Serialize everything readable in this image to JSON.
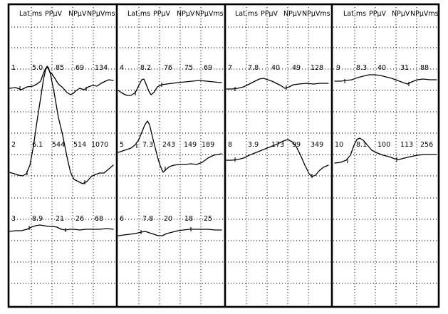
{
  "header_labels": [
    "Lat.ms",
    "PPµV",
    "NPµV",
    "NPµVms"
  ],
  "traces": [
    {
      "num": "1",
      "lat": "5.0",
      "pp": "85",
      "np": "69",
      "npms": "134"
    },
    {
      "num": "2",
      "lat": "6.1",
      "pp": "544",
      "np": "514",
      "npms": "1070"
    },
    {
      "num": "3",
      "lat": "8.9",
      "pp": "21",
      "np": "26",
      "npms": "68"
    },
    {
      "num": "4",
      "lat": "8.2",
      "pp": "76",
      "np": "75",
      "npms": "69"
    },
    {
      "num": "5",
      "lat": "7.3",
      "pp": "243",
      "np": "149",
      "npms": "189"
    },
    {
      "num": "6",
      "lat": "7.8",
      "pp": "20",
      "np": "18",
      "npms": "25"
    },
    {
      "num": "7",
      "lat": "7.8",
      "pp": "40",
      "np": "49",
      "npms": "128"
    },
    {
      "num": "8",
      "lat": "3.9",
      "pp": "173",
      "np": "99",
      "npms": "349"
    },
    {
      "num": "9",
      "lat": "8.3",
      "pp": "40",
      "np": "31",
      "npms": "88"
    },
    {
      "num": "10",
      "lat": "8.1",
      "pp": "100",
      "np": "113",
      "npms": "256"
    }
  ]
}
